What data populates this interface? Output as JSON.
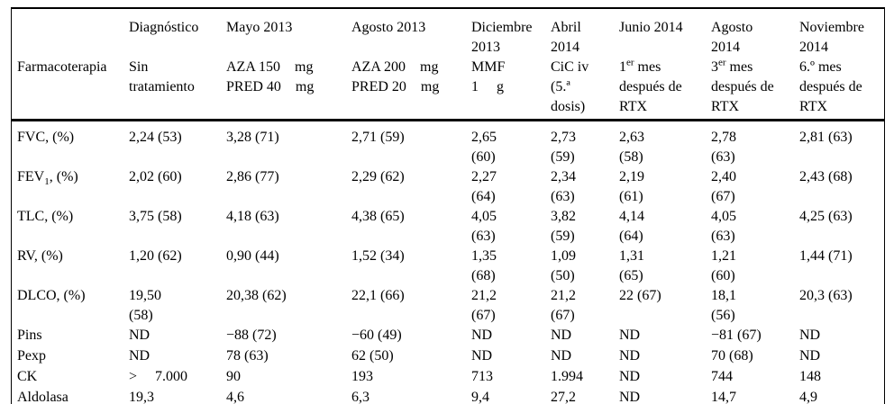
{
  "table": {
    "row_header_label": "Farmacoterapia",
    "columns": [
      {
        "date": "",
        "therapy_pre": "",
        "therapy_sup": "",
        "therapy_post": "Farmacoterapia"
      },
      {
        "date": "Diagnóstico",
        "therapy_pre": "",
        "therapy_sup": "",
        "therapy_post": "Sin\ntratamiento"
      },
      {
        "date": "Mayo 2013",
        "therapy_pre": "",
        "therapy_sup": "",
        "therapy_post": "AZA 150 mg\nPRED 40 mg"
      },
      {
        "date": "Agosto 2013",
        "therapy_pre": "",
        "therapy_sup": "",
        "therapy_post": "AZA 200 mg\nPRED 20 mg"
      },
      {
        "date": "Diciembre\n2013",
        "therapy_pre": "",
        "therapy_sup": "",
        "therapy_post": "MMF\n1  g"
      },
      {
        "date": "Abril\n2014",
        "therapy_pre": "",
        "therapy_sup": "",
        "therapy_post": "CiC iv\n(5.ª\ndosis)"
      },
      {
        "date": "Junio 2014",
        "therapy_pre": "1",
        "therapy_sup": "er",
        "therapy_post": " mes\ndespués de\nRTX"
      },
      {
        "date": "Agosto\n2014",
        "therapy_pre": "3",
        "therapy_sup": "er",
        "therapy_post": " mes\ndespués de\nRTX"
      },
      {
        "date": "Noviembre\n2014",
        "therapy_pre": "",
        "therapy_sup": "",
        "therapy_post": "6.º mes\ndespués de\nRTX"
      }
    ],
    "rows": [
      {
        "label_pre": "FVC, (%)",
        "label_sub": "",
        "label_post": "",
        "values": [
          "2,24 (53)",
          "3,28 (71)",
          "2,71 (59)",
          "2,65\n(60)",
          "2,73\n(59)",
          "2,63\n(58)",
          "2,78\n(63)",
          "2,81 (63)"
        ]
      },
      {
        "label_pre": "FEV",
        "label_sub": "1",
        "label_post": ", (%)",
        "values": [
          "2,02 (60)",
          "2,86 (77)",
          "2,29 (62)",
          "2,27\n(64)",
          "2,34\n(63)",
          "2,19\n(61)",
          "2,40\n(67)",
          "2,43 (68)"
        ]
      },
      {
        "label_pre": "TLC, (%)",
        "label_sub": "",
        "label_post": "",
        "values": [
          "3,75 (58)",
          "4,18 (63)",
          "4,38 (65)",
          "4,05\n(63)",
          "3,82\n(59)",
          "4,14\n(64)",
          "4,05\n(63)",
          "4,25 (63)"
        ]
      },
      {
        "label_pre": "RV, (%)",
        "label_sub": "",
        "label_post": "",
        "values": [
          "1,20 (62)",
          "0,90 (44)",
          "1,52 (34)",
          "1,35\n(68)",
          "1,09\n(50)",
          "1,31\n(65)",
          "1,21\n(60)",
          "1,44 (71)"
        ]
      },
      {
        "label_pre": "DLCO, (%)",
        "label_sub": "",
        "label_post": "",
        "values": [
          "19,50\n(58)",
          "20,38 (62)",
          "22,1 (66)",
          "21,2\n(67)",
          "21,2\n(67)",
          "22 (67)",
          "18,1\n(56)",
          "20,3 (63)"
        ]
      },
      {
        "label_pre": "Pins",
        "label_sub": "",
        "label_post": "",
        "values": [
          "ND",
          "−88 (72)",
          "−60 (49)",
          "ND",
          "ND",
          "ND",
          "−81 (67)",
          "ND"
        ]
      },
      {
        "label_pre": "Pexp",
        "label_sub": "",
        "label_post": "",
        "values": [
          "ND",
          "78 (63)",
          "62 (50)",
          "ND",
          "ND",
          "ND",
          "70 (68)",
          "ND"
        ]
      },
      {
        "label_pre": "CK",
        "label_sub": "",
        "label_post": "",
        "values": [
          ">  7.000",
          "90",
          "193",
          "713",
          "1.994",
          "ND",
          "744",
          "148"
        ]
      },
      {
        "label_pre": "Aldolasa",
        "label_sub": "",
        "label_post": "",
        "values": [
          "19,3",
          "4,6",
          "6,3",
          "9,4",
          "27,2",
          "ND",
          "14,7",
          "4,9"
        ]
      }
    ]
  }
}
